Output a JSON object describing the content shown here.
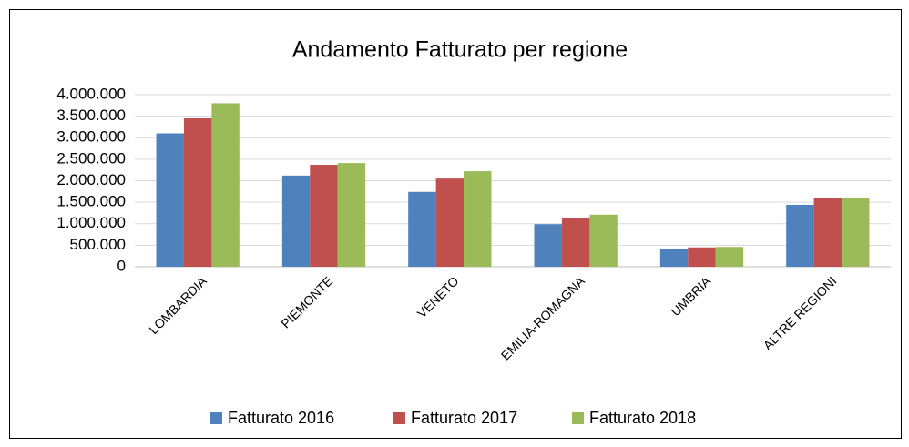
{
  "chart_data": {
    "type": "bar",
    "title": "Andamento Fatturato per regione",
    "categories": [
      "LOMBARDIA",
      "PIEMONTE",
      "VENETO",
      "EMILIA-ROMAGNA",
      "UMBRIA",
      "ALTRE REGIONI"
    ],
    "series": [
      {
        "name": "Fatturato 2016",
        "color": "#4f81bd",
        "values": [
          3100000,
          2120000,
          1740000,
          990000,
          420000,
          1440000
        ]
      },
      {
        "name": "Fatturato 2017",
        "color": "#c0504d",
        "values": [
          3450000,
          2370000,
          2050000,
          1140000,
          450000,
          1590000
        ]
      },
      {
        "name": "Fatturato 2018",
        "color": "#9bbb59",
        "values": [
          3800000,
          2410000,
          2220000,
          1210000,
          460000,
          1610000
        ]
      }
    ],
    "ylim": [
      0,
      4000000
    ],
    "yticks": [
      0,
      {
        "value": 500000,
        "label": "500.000"
      },
      {
        "value": 1000000,
        "label": "1.000.000"
      },
      {
        "value": 1500000,
        "label": "1.500.000"
      },
      {
        "value": 2000000,
        "label": "2.000.000"
      },
      {
        "value": 2500000,
        "label": "2.500.000"
      },
      {
        "value": 3000000,
        "label": "3.000.000"
      },
      {
        "value": 3500000,
        "label": "3.500.000"
      },
      {
        "value": 4000000,
        "label": "4.000.000"
      }
    ],
    "grid": true,
    "legend": "bottom"
  }
}
